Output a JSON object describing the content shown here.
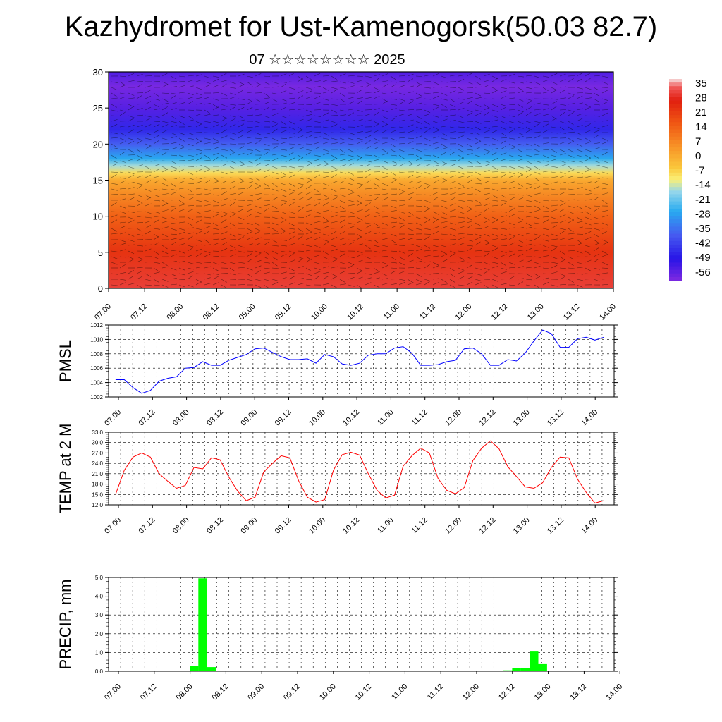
{
  "title": "Kazhydromet for Ust-Kamenogorsk(50.03 82.7)",
  "subtitle": "07 ☆☆☆☆☆☆☆☆ 2025",
  "time_labels": [
    "07.00",
    "07.12",
    "08.00",
    "08.12",
    "09.00",
    "09.12",
    "10.00",
    "10.12",
    "11.00",
    "11.12",
    "12.00",
    "12.12",
    "13.00",
    "13.12",
    "14.00"
  ],
  "colorbar": {
    "labels": [
      "35",
      "28",
      "21",
      "14",
      "7",
      "0",
      "-7",
      "-14",
      "-21",
      "-28",
      "-35",
      "-42",
      "-49",
      "-56"
    ]
  },
  "chart_data": [
    {
      "type": "heatmap",
      "name": "cross-section",
      "ylim": [
        0,
        30
      ],
      "yticks": [
        "0",
        "5",
        "10",
        "15",
        "20",
        "25",
        "30"
      ],
      "x": [
        "07.00",
        "07.12",
        "08.00",
        "08.12",
        "09.00",
        "09.12",
        "10.00",
        "10.12",
        "11.00",
        "11.12",
        "12.00",
        "12.12",
        "13.00",
        "13.12",
        "14.00"
      ],
      "color_range": [
        -60,
        38
      ],
      "profile_levels": [
        0,
        5,
        10,
        13,
        15,
        16,
        17,
        18,
        20,
        22,
        25,
        28,
        30
      ],
      "profile_values": [
        32,
        24,
        15,
        7,
        1,
        -8,
        -16,
        -27,
        -38,
        -47,
        -56,
        -62,
        -55
      ]
    },
    {
      "type": "line",
      "ylabel": "PMSL",
      "ylim": [
        1002,
        1012
      ],
      "yticks": [
        "1002",
        "1004",
        "1006",
        "1008",
        "1010",
        "1012"
      ],
      "color": "#0000ff",
      "values": [
        1004.4,
        1004.4,
        1003.3,
        1002.5,
        1002.9,
        1004.2,
        1004.6,
        1004.8,
        1006.0,
        1006.1,
        1006.9,
        1006.4,
        1006.4,
        1007.1,
        1007.5,
        1007.9,
        1008.7,
        1008.8,
        1008.2,
        1007.6,
        1007.2,
        1007.2,
        1007.3,
        1006.7,
        1007.9,
        1007.6,
        1006.6,
        1006.4,
        1006.7,
        1007.8,
        1008.0,
        1008.0,
        1008.8,
        1009.0,
        1008.1,
        1006.4,
        1006.4,
        1006.5,
        1006.9,
        1007.1,
        1008.7,
        1008.8,
        1008.0,
        1006.4,
        1006.4,
        1007.2,
        1007.0,
        1008.1,
        1009.8,
        1011.3,
        1010.8,
        1008.9,
        1008.9,
        1010.1,
        1010.3,
        1009.9,
        1010.3
      ]
    },
    {
      "type": "line",
      "ylabel": "TEMP at 2 M",
      "ylim": [
        12,
        33
      ],
      "yticks": [
        "12.0",
        "15.0",
        "18.0",
        "21.0",
        "24.0",
        "27.0",
        "30.0",
        "33.0"
      ],
      "color": "#ff0000",
      "values": [
        15.0,
        22.0,
        25.8,
        27.0,
        25.8,
        21.0,
        18.8,
        16.8,
        17.6,
        22.8,
        22.4,
        25.6,
        25.0,
        20.0,
        16.0,
        13.2,
        14.2,
        21.5,
        24.0,
        26.2,
        25.6,
        19.0,
        14.2,
        12.8,
        13.5,
        22.0,
        26.5,
        27.2,
        26.4,
        21.0,
        16.2,
        14.0,
        14.8,
        23.2,
        26.2,
        28.4,
        27.0,
        19.6,
        16.2,
        15.2,
        17.0,
        24.8,
        28.4,
        30.5,
        28.2,
        23.0,
        20.2,
        17.2,
        16.8,
        18.4,
        22.8,
        25.8,
        25.6,
        19.4,
        15.6,
        12.5,
        13.2
      ]
    },
    {
      "type": "bar",
      "ylabel": "PRECIP, mm",
      "ylim": [
        0,
        5
      ],
      "yticks": [
        "0.0",
        "1.0",
        "2.0",
        "3.0",
        "4.0",
        "5.0"
      ],
      "color": "#00ff00",
      "values": [
        0,
        0,
        0,
        0,
        0.03,
        0,
        0,
        0,
        0,
        0.3,
        4.95,
        0.22,
        0,
        0,
        0,
        0,
        0,
        0,
        0,
        0,
        0,
        0,
        0,
        0,
        0,
        0,
        0,
        0,
        0,
        0,
        0,
        0,
        0,
        0,
        0,
        0,
        0,
        0,
        0,
        0,
        0,
        0,
        0,
        0,
        0,
        0.05,
        0.15,
        0.15,
        1.05,
        0.38,
        0,
        0,
        0,
        0,
        0,
        0,
        0
      ]
    }
  ]
}
